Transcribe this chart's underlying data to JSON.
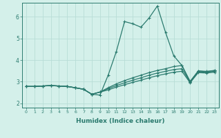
{
  "xlabel": "Humidex (Indice chaleur)",
  "bg_color": "#d4f0ea",
  "line_color": "#2a7a6e",
  "grid_color": "#b8ddd6",
  "xlim": [
    -0.5,
    23.5
  ],
  "ylim": [
    1.8,
    6.65
  ],
  "yticks": [
    2,
    3,
    4,
    5,
    6
  ],
  "xticks": [
    0,
    1,
    2,
    3,
    4,
    5,
    6,
    7,
    8,
    9,
    10,
    11,
    12,
    13,
    14,
    15,
    16,
    17,
    18,
    19,
    20,
    21,
    22,
    23
  ],
  "lines": [
    {
      "x": [
        0,
        1,
        2,
        3,
        4,
        5,
        6,
        7,
        8,
        9,
        10,
        11,
        12,
        13,
        14,
        15,
        16,
        17,
        18,
        19,
        20,
        21,
        22,
        23
      ],
      "y": [
        2.78,
        2.78,
        2.8,
        2.82,
        2.8,
        2.78,
        2.72,
        2.65,
        2.42,
        2.38,
        3.3,
        4.4,
        5.78,
        5.68,
        5.52,
        5.95,
        6.5,
        5.28,
        4.2,
        3.75,
        2.98,
        3.5,
        3.45,
        3.52
      ]
    },
    {
      "x": [
        0,
        1,
        2,
        3,
        4,
        5,
        6,
        7,
        8,
        9,
        10,
        11,
        12,
        13,
        14,
        15,
        16,
        17,
        18,
        19,
        20,
        21,
        22,
        23
      ],
      "y": [
        2.78,
        2.78,
        2.8,
        2.82,
        2.8,
        2.78,
        2.72,
        2.65,
        2.42,
        2.52,
        2.72,
        2.9,
        3.05,
        3.18,
        3.3,
        3.42,
        3.52,
        3.6,
        3.7,
        3.75,
        3.02,
        3.5,
        3.48,
        3.52
      ]
    },
    {
      "x": [
        0,
        1,
        2,
        3,
        4,
        5,
        6,
        7,
        8,
        9,
        10,
        11,
        12,
        13,
        14,
        15,
        16,
        17,
        18,
        19,
        20,
        21,
        22,
        23
      ],
      "y": [
        2.78,
        2.78,
        2.8,
        2.82,
        2.8,
        2.78,
        2.72,
        2.65,
        2.42,
        2.52,
        2.68,
        2.82,
        2.95,
        3.07,
        3.18,
        3.3,
        3.4,
        3.48,
        3.56,
        3.6,
        2.98,
        3.46,
        3.44,
        3.48
      ]
    },
    {
      "x": [
        0,
        1,
        2,
        3,
        4,
        5,
        6,
        7,
        8,
        9,
        10,
        11,
        12,
        13,
        14,
        15,
        16,
        17,
        18,
        19,
        20,
        21,
        22,
        23
      ],
      "y": [
        2.78,
        2.78,
        2.8,
        2.82,
        2.8,
        2.78,
        2.72,
        2.65,
        2.42,
        2.52,
        2.62,
        2.75,
        2.86,
        2.97,
        3.07,
        3.18,
        3.28,
        3.36,
        3.44,
        3.48,
        2.95,
        3.42,
        3.4,
        3.44
      ]
    }
  ]
}
